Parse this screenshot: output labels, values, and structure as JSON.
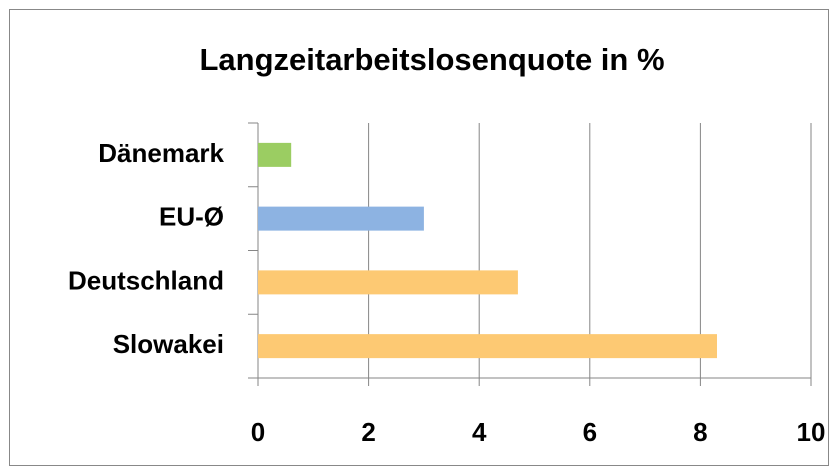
{
  "chart_data": {
    "type": "barh",
    "title": "Langzeitarbeitslosenquote in %",
    "categories": [
      "Dänemark",
      "EU-Ø",
      "Deutschland",
      "Slowakei"
    ],
    "values": [
      0.6,
      3.0,
      4.7,
      8.3
    ],
    "colors": [
      "#9bcd62",
      "#8db3e2",
      "#fdc973",
      "#fdc973"
    ],
    "xlim": [
      0,
      10
    ],
    "xticks": [
      0,
      2,
      4,
      6,
      8,
      10
    ],
    "grid": true
  }
}
